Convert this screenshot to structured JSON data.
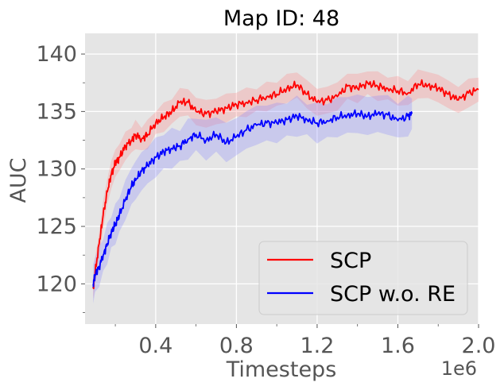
{
  "chart_data": {
    "type": "line",
    "title": "Map ID: 48",
    "xlabel": "Timesteps",
    "ylabel": "AUC",
    "x_offset_label": "1e6",
    "xlim": [
      0.05,
      2.0
    ],
    "ylim": [
      116.5,
      141.8
    ],
    "xticks": [
      0.4,
      0.8,
      1.2,
      1.6,
      2.0
    ],
    "xtick_labels": [
      "0.4",
      "0.8",
      "1.2",
      "1.6",
      "2.0"
    ],
    "yticks": [
      120,
      125,
      130,
      135,
      140
    ],
    "ytick_labels": [
      "120",
      "125",
      "130",
      "135",
      "140"
    ],
    "grid": true,
    "legend_position": "lower-right",
    "series": [
      {
        "name": "SCP",
        "color": "#ff0000",
        "band_color": "#ff8080",
        "x": [
          0.09,
          0.1,
          0.12,
          0.14,
          0.16,
          0.18,
          0.2,
          0.22,
          0.25,
          0.28,
          0.3,
          0.33,
          0.36,
          0.4,
          0.44,
          0.48,
          0.52,
          0.56,
          0.6,
          0.65,
          0.7,
          0.75,
          0.8,
          0.85,
          0.9,
          0.95,
          1.0,
          1.05,
          1.1,
          1.15,
          1.2,
          1.25,
          1.3,
          1.35,
          1.4,
          1.45,
          1.5,
          1.55,
          1.6,
          1.65,
          1.7,
          1.75,
          1.8,
          1.85,
          1.9,
          1.95,
          2.0
        ],
        "values": [
          119.6,
          121.0,
          123.5,
          126.0,
          128.0,
          129.5,
          130.5,
          131.0,
          132.0,
          132.5,
          133.0,
          132.6,
          133.0,
          134.0,
          134.5,
          135.0,
          135.8,
          135.8,
          135.0,
          134.8,
          135.0,
          135.3,
          135.6,
          135.8,
          136.0,
          136.3,
          136.5,
          137.0,
          137.3,
          136.5,
          135.8,
          136.0,
          136.3,
          137.2,
          137.0,
          137.5,
          137.2,
          137.0,
          136.8,
          136.6,
          137.4,
          137.3,
          137.0,
          136.5,
          136.0,
          136.6,
          136.9
        ],
        "band": 1.3
      },
      {
        "name": "SCP w.o. RE",
        "color": "#0000ff",
        "band_color": "#8080ff",
        "x": [
          0.09,
          0.1,
          0.12,
          0.14,
          0.16,
          0.18,
          0.2,
          0.22,
          0.25,
          0.28,
          0.3,
          0.33,
          0.36,
          0.4,
          0.44,
          0.48,
          0.52,
          0.56,
          0.6,
          0.65,
          0.7,
          0.75,
          0.8,
          0.85,
          0.9,
          0.95,
          1.0,
          1.05,
          1.1,
          1.15,
          1.2,
          1.25,
          1.3,
          1.35,
          1.4,
          1.45,
          1.5,
          1.55,
          1.6,
          1.65,
          1.67
        ],
        "values": [
          120.0,
          120.8,
          121.5,
          122.5,
          123.5,
          124.5,
          125.2,
          126.0,
          127.3,
          128.5,
          129.0,
          129.8,
          130.3,
          131.0,
          131.5,
          131.8,
          132.0,
          132.6,
          133.0,
          132.5,
          133.0,
          132.3,
          132.8,
          133.4,
          133.8,
          134.0,
          134.0,
          134.3,
          134.6,
          134.3,
          134.0,
          134.2,
          134.5,
          134.7,
          134.8,
          134.6,
          134.8,
          134.7,
          134.2,
          134.6,
          134.8
        ],
        "band": 1.8
      }
    ]
  }
}
